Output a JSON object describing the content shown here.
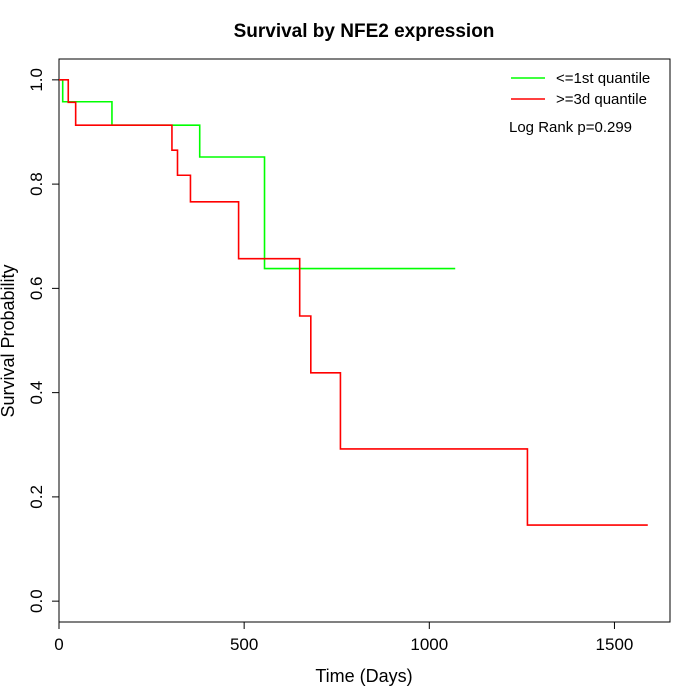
{
  "chart_data": {
    "type": "line",
    "title": "Survival by NFE2 expression",
    "xlabel": "Time (Days)",
    "ylabel": "Survival Probability",
    "xlim": [
      0,
      1650
    ],
    "ylim": [
      -0.04,
      1.04
    ],
    "x_ticks": [
      0,
      500,
      1000,
      1500
    ],
    "y_ticks": [
      0.0,
      0.2,
      0.4,
      0.6,
      0.8,
      1.0
    ],
    "x_tick_labels": [
      "0",
      "500",
      "1000",
      "1500"
    ],
    "y_tick_labels": [
      "0.0",
      "0.2",
      "0.4",
      "0.6",
      "0.8",
      "1.0"
    ],
    "grid": false,
    "legend_position": "top-right",
    "annotation": "Log Rank p=0.299",
    "series": [
      {
        "name": "<=1st quantile",
        "color": "#00ff00",
        "step": true,
        "x": [
          0,
          10,
          143,
          380,
          555,
          1070
        ],
        "y": [
          1.0,
          0.958,
          0.913,
          0.852,
          0.638,
          0.638
        ]
      },
      {
        "name": ">=3d quantile",
        "color": "#ff0000",
        "step": true,
        "x": [
          0,
          25,
          45,
          305,
          320,
          355,
          485,
          650,
          680,
          760,
          1265,
          1590
        ],
        "y": [
          1.0,
          0.957,
          0.913,
          0.865,
          0.817,
          0.766,
          0.657,
          0.547,
          0.438,
          0.292,
          0.146,
          0.146
        ]
      }
    ]
  }
}
